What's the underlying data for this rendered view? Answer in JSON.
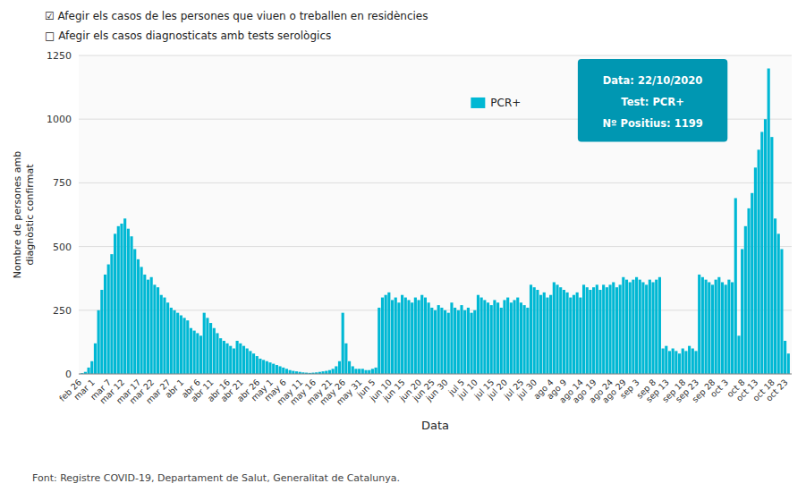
{
  "chart_data": {
    "type": "bar",
    "xlabel": "Data",
    "ylabel": "Nombre de persones amb\ndiagnòstic confirmat",
    "annotations": [
      "☑ Afegir els casos de les persones que viuen o treballen en residències",
      "□ Afegir els casos diagnosticats amb tests serològics",
      "Font: Registre COVID-19, Departament de Salut, Generalitat de Catalunya.",
      "Data: 22/10/2020",
      "Test: PCR+",
      "Nº Positius: 1199"
    ],
    "categories": [
      "feb 26",
      null,
      null,
      null,
      "mar 1",
      null,
      null,
      null,
      null,
      "mar 7",
      null,
      null,
      null,
      "mar 12",
      null,
      null,
      null,
      null,
      "mar 17",
      null,
      null,
      null,
      "mar 22",
      null,
      null,
      null,
      null,
      "mar 27",
      null,
      null,
      null,
      "abr 1",
      null,
      null,
      null,
      null,
      "abr 6",
      null,
      null,
      null,
      "abr 11",
      null,
      null,
      null,
      null,
      "abr 16",
      null,
      null,
      null,
      "abr 21",
      null,
      null,
      null,
      null,
      "abr 26",
      null,
      null,
      null,
      "may 1",
      null,
      null,
      null,
      "may 6",
      null,
      null,
      null,
      null,
      "may 11",
      null,
      null,
      null,
      "may 16",
      null,
      null,
      null,
      null,
      "may 21",
      null,
      null,
      null,
      "may 26",
      null,
      null,
      null,
      null,
      "may 31",
      null,
      null,
      null,
      "jun 5",
      null,
      null,
      null,
      null,
      "jun 10",
      null,
      null,
      null,
      "jun 15",
      null,
      null,
      null,
      null,
      "jun 20",
      null,
      null,
      null,
      "jun 25",
      null,
      null,
      null,
      "jun 30",
      null,
      null,
      null,
      null,
      "jul 5",
      null,
      null,
      null,
      "jul 10",
      null,
      null,
      null,
      null,
      "jul 15",
      null,
      null,
      null,
      "jul 20",
      null,
      null,
      null,
      null,
      "jul 25",
      null,
      null,
      null,
      "jul 30",
      null,
      null,
      null,
      null,
      "ago 4",
      null,
      null,
      null,
      "ago 9",
      null,
      null,
      null,
      null,
      "ago 14",
      null,
      null,
      null,
      "ago 19",
      null,
      null,
      null,
      null,
      "ago 24",
      null,
      null,
      null,
      "ago 29",
      null,
      null,
      null,
      "sep 3",
      null,
      null,
      null,
      null,
      "sep 8",
      null,
      null,
      null,
      "sep 13",
      null,
      null,
      null,
      null,
      "sep 18",
      null,
      null,
      null,
      "sep 23",
      null,
      null,
      null,
      null,
      "sep 28",
      null,
      null,
      null,
      "oct 3",
      null,
      null,
      null,
      null,
      "oct 8",
      null,
      null,
      null,
      "oct 13",
      null,
      null,
      null,
      null,
      "oct 18",
      null,
      null,
      null,
      "oct 23"
    ],
    "series": [
      {
        "name": "PCR+",
        "color": "#00B8D4",
        "values": [
          3,
          8,
          25,
          50,
          120,
          250,
          330,
          390,
          430,
          470,
          550,
          580,
          590,
          610,
          570,
          540,
          490,
          450,
          420,
          390,
          370,
          380,
          350,
          340,
          310,
          300,
          280,
          260,
          250,
          240,
          230,
          220,
          210,
          180,
          170,
          160,
          150,
          240,
          220,
          200,
          180,
          160,
          140,
          130,
          120,
          110,
          100,
          130,
          120,
          110,
          100,
          90,
          80,
          70,
          60,
          55,
          50,
          45,
          40,
          35,
          30,
          25,
          20,
          15,
          12,
          10,
          8,
          6,
          5,
          4,
          5,
          6,
          8,
          10,
          12,
          15,
          20,
          30,
          50,
          240,
          120,
          50,
          30,
          20,
          20,
          20,
          15,
          15,
          20,
          25,
          260,
          300,
          310,
          320,
          290,
          300,
          280,
          310,
          300,
          290,
          280,
          300,
          290,
          310,
          300,
          280,
          260,
          250,
          270,
          260,
          250,
          240,
          280,
          260,
          250,
          270,
          250,
          260,
          240,
          250,
          310,
          300,
          290,
          280,
          270,
          290,
          280,
          260,
          290,
          300,
          280,
          290,
          300,
          280,
          270,
          260,
          350,
          340,
          330,
          310,
          320,
          300,
          310,
          360,
          350,
          340,
          330,
          320,
          300,
          310,
          320,
          300,
          350,
          340,
          330,
          340,
          350,
          330,
          350,
          340,
          350,
          360,
          340,
          350,
          380,
          370,
          360,
          370,
          380,
          370,
          360,
          350,
          370,
          360,
          370,
          380,
          100,
          110,
          90,
          100,
          90,
          80,
          100,
          90,
          110,
          100,
          90,
          390,
          380,
          370,
          360,
          350,
          370,
          380,
          360,
          350,
          370,
          360,
          690,
          150,
          490,
          580,
          650,
          710,
          810,
          880,
          950,
          1000,
          1199,
          930,
          610,
          550,
          490,
          130,
          80
        ]
      }
    ],
    "ylim": [
      0,
      1250
    ],
    "yticks": [
      0,
      250,
      500,
      750,
      1000,
      1250
    ],
    "grid": true,
    "legend": "top"
  }
}
